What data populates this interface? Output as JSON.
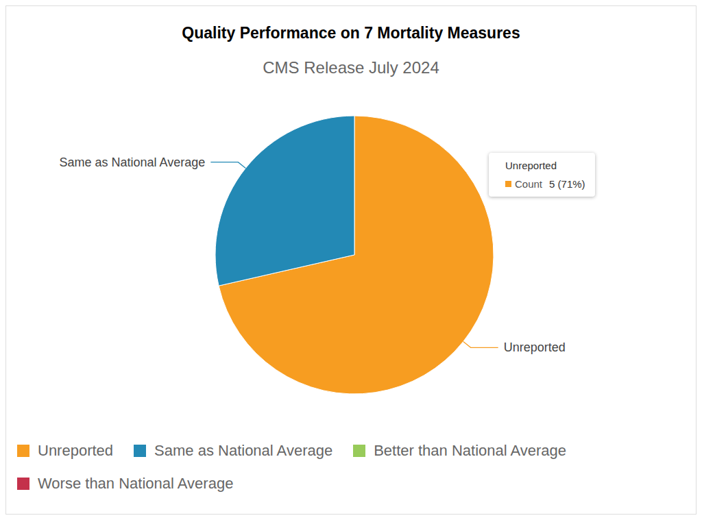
{
  "chart_data": {
    "type": "pie",
    "title": "Quality Performance on 7 Mortality Measures",
    "subtitle": "CMS Release July 2024",
    "categories": [
      "Unreported",
      "Same as National Average",
      "Better than National Average",
      "Worse than National Average"
    ],
    "values": [
      5,
      2,
      0,
      0
    ],
    "colors": [
      "#f79d21",
      "#2389b5",
      "#98cb5a",
      "#c4314b"
    ],
    "legend": "bottom",
    "annotations": [
      {
        "title": "Unreported",
        "label": "Count",
        "text": "5 (71%)"
      }
    ]
  }
}
